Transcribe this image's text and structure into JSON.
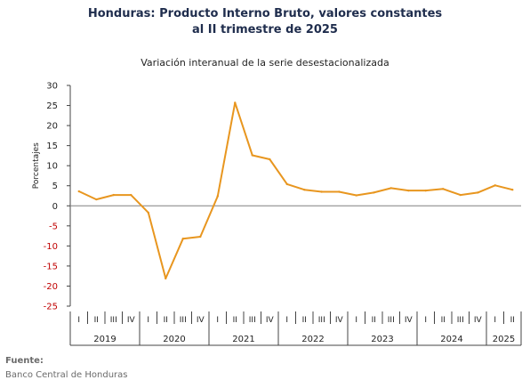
{
  "title_line1": "Honduras: Producto Interno Bruto, valores constantes",
  "title_line2": "al II trimestre de 2025",
  "source_label": "Fuente:",
  "source_text": "Banco Central de Honduras",
  "chart_data": {
    "type": "line",
    "title": "Honduras: Producto Interno Bruto, valores constantes al II trimestre de 2025",
    "subtitle": "Variación interanual de la serie desestacionalizada",
    "ylabel": "Porcentajes",
    "xlabel": "",
    "ylim": [
      -25,
      30
    ],
    "yticks": [
      30,
      25,
      20,
      15,
      10,
      5,
      0,
      -5,
      -10,
      -15,
      -20,
      -25
    ],
    "grid": false,
    "legend": "none",
    "quarter_labels": [
      "I",
      "II",
      "III",
      "IV",
      "I",
      "II",
      "III",
      "IV",
      "I",
      "II",
      "III",
      "IV",
      "I",
      "II",
      "III",
      "IV",
      "I",
      "II",
      "III",
      "IV",
      "I",
      "II",
      "III",
      "IV",
      "I",
      "II"
    ],
    "years": [
      "2019",
      "2020",
      "2021",
      "2022",
      "2023",
      "2024",
      "2025"
    ],
    "year_quarter_counts": [
      4,
      4,
      4,
      4,
      4,
      4,
      2
    ],
    "values": [
      3.6,
      1.6,
      2.7,
      2.7,
      -1.7,
      -18.1,
      -8.2,
      -7.7,
      2.4,
      25.7,
      12.6,
      11.6,
      5.4,
      4.0,
      3.5,
      3.5,
      2.6,
      3.3,
      4.4,
      3.8,
      3.8,
      4.2,
      2.7,
      3.3,
      5.1,
      4.0
    ],
    "colors": {
      "line": "#e8961f",
      "negative_tick": "#c00000",
      "axis": "#444444",
      "text": "#222222"
    }
  }
}
